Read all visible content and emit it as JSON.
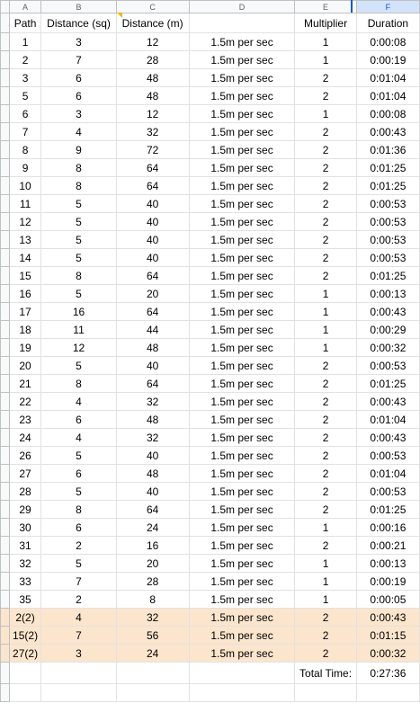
{
  "columns": [
    "A",
    "B",
    "C",
    "D",
    "E",
    "F"
  ],
  "selected_column": "F",
  "headers": [
    "Path",
    "Distance (sq)",
    "Distance (m)",
    "",
    "Multiplier",
    "Duration"
  ],
  "rows": [
    [
      "1",
      "3",
      "12",
      "1.5m per sec",
      "1",
      "0:00:08"
    ],
    [
      "2",
      "7",
      "28",
      "1.5m per sec",
      "1",
      "0:00:19"
    ],
    [
      "3",
      "6",
      "48",
      "1.5m per sec",
      "2",
      "0:01:04"
    ],
    [
      "5",
      "6",
      "48",
      "1.5m per sec",
      "2",
      "0:01:04"
    ],
    [
      "6",
      "3",
      "12",
      "1.5m per sec",
      "1",
      "0:00:08"
    ],
    [
      "7",
      "4",
      "32",
      "1.5m per sec",
      "2",
      "0:00:43"
    ],
    [
      "8",
      "9",
      "72",
      "1.5m per sec",
      "2",
      "0:01:36"
    ],
    [
      "9",
      "8",
      "64",
      "1.5m per sec",
      "2",
      "0:01:25"
    ],
    [
      "10",
      "8",
      "64",
      "1.5m per sec",
      "2",
      "0:01:25"
    ],
    [
      "11",
      "5",
      "40",
      "1.5m per sec",
      "2",
      "0:00:53"
    ],
    [
      "12",
      "5",
      "40",
      "1.5m per sec",
      "2",
      "0:00:53"
    ],
    [
      "13",
      "5",
      "40",
      "1.5m per sec",
      "2",
      "0:00:53"
    ],
    [
      "14",
      "5",
      "40",
      "1.5m per sec",
      "2",
      "0:00:53"
    ],
    [
      "15",
      "8",
      "64",
      "1.5m per sec",
      "2",
      "0:01:25"
    ],
    [
      "16",
      "5",
      "20",
      "1.5m per sec",
      "1",
      "0:00:13"
    ],
    [
      "17",
      "16",
      "64",
      "1.5m per sec",
      "1",
      "0:00:43"
    ],
    [
      "18",
      "11",
      "44",
      "1.5m per sec",
      "1",
      "0:00:29"
    ],
    [
      "19",
      "12",
      "48",
      "1.5m per sec",
      "1",
      "0:00:32"
    ],
    [
      "20",
      "5",
      "40",
      "1.5m per sec",
      "2",
      "0:00:53"
    ],
    [
      "21",
      "8",
      "64",
      "1.5m per sec",
      "2",
      "0:01:25"
    ],
    [
      "22",
      "4",
      "32",
      "1.5m per sec",
      "2",
      "0:00:43"
    ],
    [
      "23",
      "6",
      "48",
      "1.5m per sec",
      "2",
      "0:01:04"
    ],
    [
      "24",
      "4",
      "32",
      "1.5m per sec",
      "2",
      "0:00:43"
    ],
    [
      "26",
      "5",
      "40",
      "1.5m per sec",
      "2",
      "0:00:53"
    ],
    [
      "27",
      "6",
      "48",
      "1.5m per sec",
      "2",
      "0:01:04"
    ],
    [
      "28",
      "5",
      "40",
      "1.5m per sec",
      "2",
      "0:00:53"
    ],
    [
      "29",
      "8",
      "64",
      "1.5m per sec",
      "2",
      "0:01:25"
    ],
    [
      "30",
      "6",
      "24",
      "1.5m per sec",
      "1",
      "0:00:16"
    ],
    [
      "31",
      "2",
      "16",
      "1.5m per sec",
      "2",
      "0:00:21"
    ],
    [
      "32",
      "5",
      "20",
      "1.5m per sec",
      "1",
      "0:00:13"
    ],
    [
      "33",
      "7",
      "28",
      "1.5m per sec",
      "1",
      "0:00:19"
    ],
    [
      "35",
      "2",
      "8",
      "1.5m per sec",
      "1",
      "0:00:05"
    ]
  ],
  "highlighted_rows": [
    [
      "2(2)",
      "4",
      "32",
      "1.5m per sec",
      "2",
      "0:00:43"
    ],
    [
      "15(2)",
      "7",
      "56",
      "1.5m per sec",
      "2",
      "0:01:15"
    ],
    [
      "27(2)",
      "3",
      "24",
      "1.5m per sec",
      "2",
      "0:00:32"
    ]
  ],
  "highlight_color": "#fce5cd",
  "total": {
    "label": "Total Time:",
    "value": "0:27:36"
  }
}
